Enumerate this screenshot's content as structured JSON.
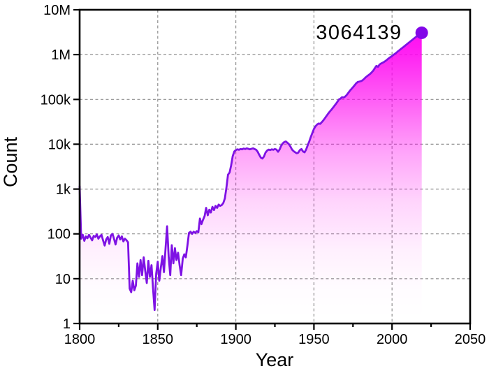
{
  "chart_data": {
    "type": "area",
    "title": "",
    "xlabel": "Year",
    "ylabel": "Count",
    "xlim": [
      1800,
      2050
    ],
    "ylim": [
      1,
      10000000
    ],
    "y_scale": "log",
    "grid": "dashed",
    "legend": "none",
    "x_axis": {
      "label": "Year",
      "ticks": [
        {
          "v": 1800,
          "t": "1800"
        },
        {
          "v": 1850,
          "t": "1850"
        },
        {
          "v": 1900,
          "t": "1900"
        },
        {
          "v": 1950,
          "t": "1950"
        },
        {
          "v": 2000,
          "t": "2000"
        },
        {
          "v": 2050,
          "t": "2050"
        }
      ],
      "minor_ticks": [
        1825,
        1875,
        1925,
        1975,
        2025
      ],
      "gridlines": [
        1850,
        1900,
        1950,
        2000
      ]
    },
    "y_axis": {
      "label": "Count",
      "ticks": [
        {
          "v": 1,
          "t": "1"
        },
        {
          "v": 10,
          "t": "10"
        },
        {
          "v": 100,
          "t": "100"
        },
        {
          "v": 1000,
          "t": "1k"
        },
        {
          "v": 10000,
          "t": "10k"
        },
        {
          "v": 100000,
          "t": "100k"
        },
        {
          "v": 1000000,
          "t": "1M"
        },
        {
          "v": 10000000,
          "t": "10M"
        }
      ],
      "gridlines": [
        10,
        100,
        1000,
        10000,
        100000,
        1000000
      ]
    },
    "annotation": {
      "text": "3064139",
      "year": 2019,
      "count": 3064139
    },
    "endpoint": {
      "year": 2019,
      "count": 3064139
    },
    "colors": {
      "line": "#7E12E4",
      "marker": "#8206E8",
      "fill_top": "#FF00F0",
      "fill_bottom": "#FFFFFF",
      "grid": "#8e8e8e",
      "axis": "#000000",
      "text": "#000000"
    },
    "series": [
      {
        "name": "Count",
        "points": [
          [
            1800,
            1150
          ],
          [
            1801,
            78
          ],
          [
            1802,
            95
          ],
          [
            1803,
            70
          ],
          [
            1804,
            88
          ],
          [
            1805,
            80
          ],
          [
            1806,
            95
          ],
          [
            1807,
            82
          ],
          [
            1808,
            72
          ],
          [
            1809,
            90
          ],
          [
            1810,
            85
          ],
          [
            1811,
            98
          ],
          [
            1812,
            78
          ],
          [
            1813,
            88
          ],
          [
            1814,
            95
          ],
          [
            1815,
            72
          ],
          [
            1816,
            55
          ],
          [
            1817,
            75
          ],
          [
            1818,
            85
          ],
          [
            1819,
            60
          ],
          [
            1820,
            92
          ],
          [
            1821,
            100
          ],
          [
            1822,
            78
          ],
          [
            1823,
            58
          ],
          [
            1824,
            82
          ],
          [
            1825,
            92
          ],
          [
            1826,
            75
          ],
          [
            1827,
            88
          ],
          [
            1828,
            68
          ],
          [
            1829,
            78
          ],
          [
            1830,
            72
          ],
          [
            1831,
            65
          ],
          [
            1832,
            6
          ],
          [
            1833,
            5
          ],
          [
            1834,
            9
          ],
          [
            1835,
            5.5
          ],
          [
            1836,
            7
          ],
          [
            1837,
            22
          ],
          [
            1838,
            11
          ],
          [
            1839,
            26
          ],
          [
            1840,
            12
          ],
          [
            1841,
            30
          ],
          [
            1842,
            15
          ],
          [
            1843,
            8
          ],
          [
            1844,
            25
          ],
          [
            1845,
            11
          ],
          [
            1846,
            20
          ],
          [
            1847,
            6
          ],
          [
            1848,
            2
          ],
          [
            1849,
            13
          ],
          [
            1850,
            24
          ],
          [
            1851,
            9
          ],
          [
            1852,
            18
          ],
          [
            1853,
            32
          ],
          [
            1854,
            14
          ],
          [
            1855,
            48
          ],
          [
            1856,
            148
          ],
          [
            1857,
            30
          ],
          [
            1858,
            12
          ],
          [
            1859,
            56
          ],
          [
            1860,
            22
          ],
          [
            1861,
            48
          ],
          [
            1862,
            26
          ],
          [
            1863,
            38
          ],
          [
            1864,
            20
          ],
          [
            1865,
            12
          ],
          [
            1866,
            28
          ],
          [
            1867,
            35
          ],
          [
            1868,
            30
          ],
          [
            1869,
            55
          ],
          [
            1870,
            105
          ],
          [
            1871,
            112
          ],
          [
            1872,
            100
          ],
          [
            1873,
            112
          ],
          [
            1874,
            105
          ],
          [
            1875,
            115
          ],
          [
            1876,
            108
          ],
          [
            1877,
            220
          ],
          [
            1878,
            165
          ],
          [
            1879,
            205
          ],
          [
            1880,
            250
          ],
          [
            1881,
            380
          ],
          [
            1882,
            260
          ],
          [
            1883,
            345
          ],
          [
            1884,
            300
          ],
          [
            1885,
            400
          ],
          [
            1886,
            340
          ],
          [
            1887,
            420
          ],
          [
            1888,
            380
          ],
          [
            1889,
            450
          ],
          [
            1890,
            420
          ],
          [
            1891,
            440
          ],
          [
            1892,
            490
          ],
          [
            1893,
            620
          ],
          [
            1894,
            1100
          ],
          [
            1895,
            2100
          ],
          [
            1896,
            2350
          ],
          [
            1897,
            3400
          ],
          [
            1898,
            5400
          ],
          [
            1899,
            6900
          ],
          [
            1900,
            7400
          ],
          [
            1901,
            7700
          ],
          [
            1902,
            7500
          ],
          [
            1903,
            7800
          ],
          [
            1904,
            7700
          ],
          [
            1905,
            8000
          ],
          [
            1906,
            7800
          ],
          [
            1907,
            8100
          ],
          [
            1908,
            7900
          ],
          [
            1909,
            7700
          ],
          [
            1910,
            7900
          ],
          [
            1911,
            8100
          ],
          [
            1912,
            7800
          ],
          [
            1913,
            7500
          ],
          [
            1914,
            6800
          ],
          [
            1915,
            5800
          ],
          [
            1916,
            5000
          ],
          [
            1917,
            4800
          ],
          [
            1918,
            5300
          ],
          [
            1919,
            6500
          ],
          [
            1920,
            7200
          ],
          [
            1921,
            7600
          ],
          [
            1922,
            7400
          ],
          [
            1923,
            7700
          ],
          [
            1924,
            7500
          ],
          [
            1925,
            7800
          ],
          [
            1926,
            7600
          ],
          [
            1927,
            6800
          ],
          [
            1928,
            7600
          ],
          [
            1929,
            9200
          ],
          [
            1930,
            10400
          ],
          [
            1931,
            11200
          ],
          [
            1932,
            11500
          ],
          [
            1933,
            10800
          ],
          [
            1934,
            10000
          ],
          [
            1935,
            8800
          ],
          [
            1936,
            7600
          ],
          [
            1937,
            7000
          ],
          [
            1938,
            6600
          ],
          [
            1939,
            6300
          ],
          [
            1940,
            6500
          ],
          [
            1941,
            7400
          ],
          [
            1942,
            7800
          ],
          [
            1943,
            6900
          ],
          [
            1944,
            6600
          ],
          [
            1945,
            7600
          ],
          [
            1946,
            9500
          ],
          [
            1947,
            11500
          ],
          [
            1948,
            14500
          ],
          [
            1949,
            18000
          ],
          [
            1950,
            22000
          ],
          [
            1951,
            25000
          ],
          [
            1952,
            27500
          ],
          [
            1953,
            29000
          ],
          [
            1954,
            28500
          ],
          [
            1955,
            31000
          ],
          [
            1956,
            34000
          ],
          [
            1957,
            38000
          ],
          [
            1958,
            42500
          ],
          [
            1959,
            47500
          ],
          [
            1960,
            53000
          ],
          [
            1961,
            58000
          ],
          [
            1962,
            64000
          ],
          [
            1963,
            71000
          ],
          [
            1964,
            79000
          ],
          [
            1965,
            88000
          ],
          [
            1966,
            100000
          ],
          [
            1967,
            104000
          ],
          [
            1968,
            112000
          ],
          [
            1969,
            110000
          ],
          [
            1970,
            116000
          ],
          [
            1971,
            126000
          ],
          [
            1972,
            140000
          ],
          [
            1973,
            156000
          ],
          [
            1974,
            171000
          ],
          [
            1975,
            187000
          ],
          [
            1976,
            206000
          ],
          [
            1977,
            228000
          ],
          [
            1978,
            244000
          ],
          [
            1979,
            250000
          ],
          [
            1980,
            255000
          ],
          [
            1981,
            265000
          ],
          [
            1982,
            284000
          ],
          [
            1983,
            309000
          ],
          [
            1984,
            329000
          ],
          [
            1985,
            350000
          ],
          [
            1986,
            372000
          ],
          [
            1987,
            402000
          ],
          [
            1988,
            442000
          ],
          [
            1989,
            500000
          ],
          [
            1990,
            560000
          ],
          [
            1991,
            535000
          ],
          [
            1992,
            600000
          ],
          [
            1993,
            632000
          ],
          [
            1994,
            660000
          ],
          [
            1995,
            690000
          ],
          [
            1996,
            730000
          ],
          [
            1997,
            780000
          ],
          [
            1998,
            830000
          ],
          [
            1999,
            880000
          ],
          [
            2000,
            930000
          ],
          [
            2001,
            990000
          ],
          [
            2002,
            1055000
          ],
          [
            2003,
            1120000
          ],
          [
            2004,
            1200000
          ],
          [
            2005,
            1280000
          ],
          [
            2006,
            1362000
          ],
          [
            2007,
            1450000
          ],
          [
            2008,
            1548000
          ],
          [
            2009,
            1650000
          ],
          [
            2010,
            1760000
          ],
          [
            2011,
            1878000
          ],
          [
            2012,
            2004000
          ],
          [
            2013,
            2138000
          ],
          [
            2014,
            2280000
          ],
          [
            2015,
            2432000
          ],
          [
            2016,
            2594000
          ],
          [
            2017,
            2700000
          ],
          [
            2018,
            2920000
          ],
          [
            2018.5,
            2780000
          ],
          [
            2019,
            3064139
          ]
        ]
      }
    ]
  }
}
